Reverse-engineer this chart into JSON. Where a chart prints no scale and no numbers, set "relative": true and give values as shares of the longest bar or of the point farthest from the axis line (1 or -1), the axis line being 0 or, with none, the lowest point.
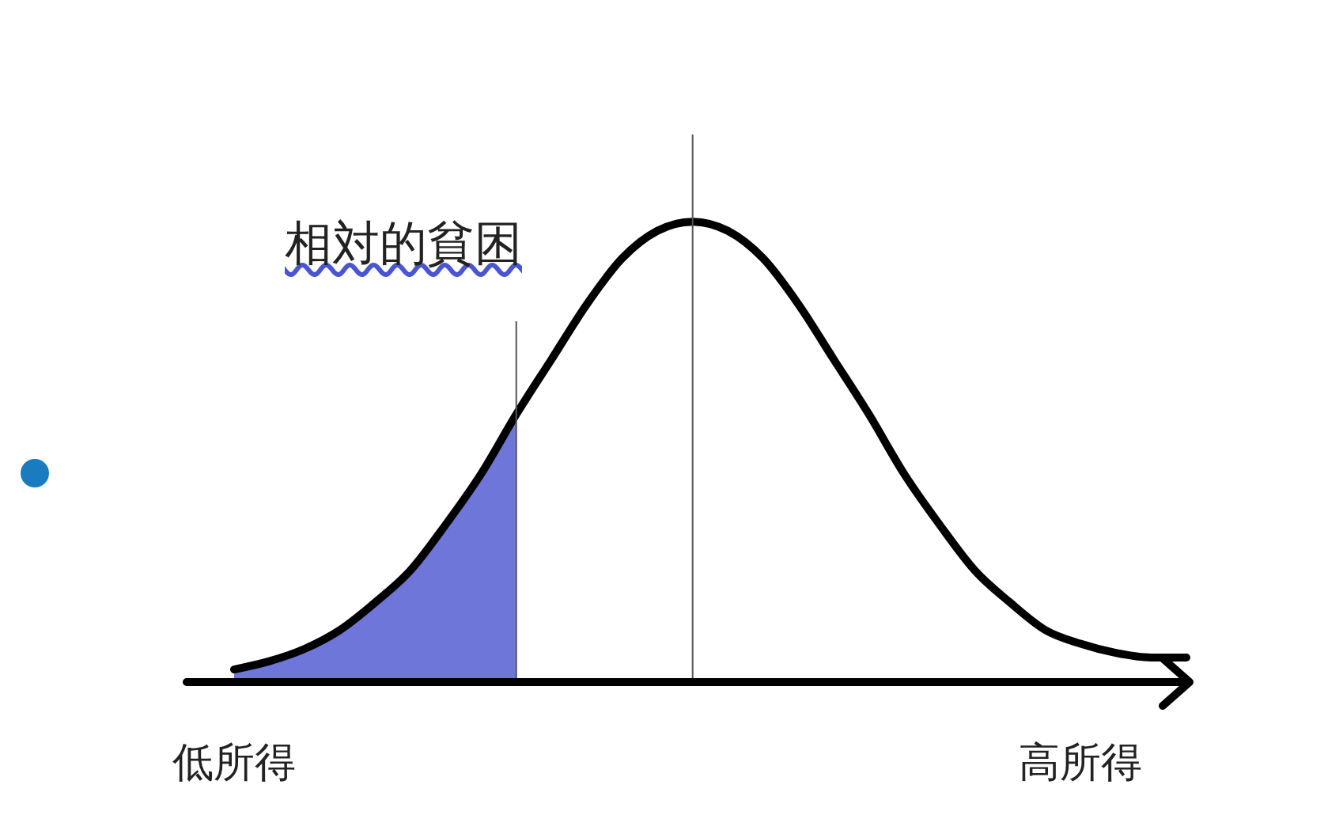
{
  "chart_data": {
    "type": "line",
    "relative": true,
    "categories": [
      "低所得",
      null,
      null,
      null,
      null,
      null,
      null,
      null,
      null,
      null,
      null,
      null,
      null,
      null,
      null,
      null,
      null,
      null,
      null,
      null,
      null,
      null,
      null,
      null,
      "高所得",
      null,
      null,
      null
    ],
    "series": [
      {
        "type": "area",
        "color": "#4a55d0",
        "values": [
          0.024,
          0.042,
          0.069,
          0.11,
          0.17,
          0.24,
          0.34,
          0.45,
          0.58,
          null,
          null,
          null,
          null,
          null,
          null,
          null,
          null,
          null,
          null,
          null,
          null,
          null,
          null,
          null,
          null,
          null,
          null,
          null
        ]
      },
      {
        "color": "#000000",
        "values": [
          0.024,
          0.042,
          0.069,
          0.11,
          0.17,
          0.24,
          0.34,
          0.45,
          0.58,
          0.7,
          0.82,
          0.92,
          0.98,
          1,
          0.98,
          0.92,
          0.82,
          0.7,
          0.58,
          0.45,
          0.34,
          0.24,
          0.17,
          0.11,
          0.08,
          0.06,
          0.05,
          0.05
        ]
      }
    ],
    "annotations": [
      "相対的貧困"
    ],
    "marker": "none",
    "line_style": "solid"
  }
}
